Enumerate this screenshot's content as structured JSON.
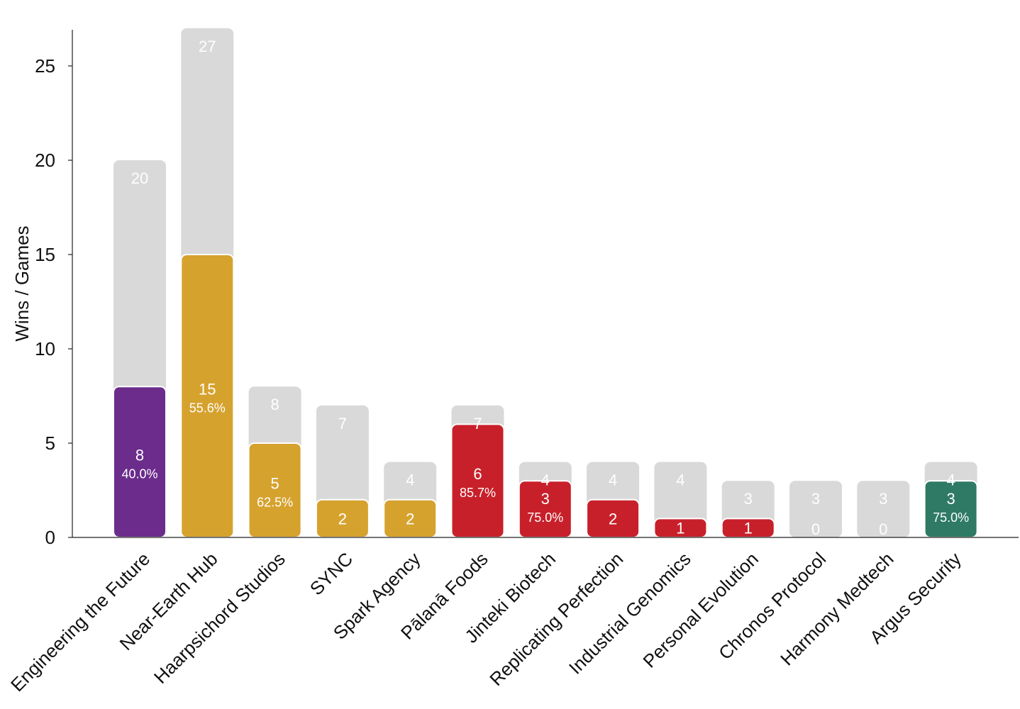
{
  "chart_data": {
    "type": "bar",
    "title": "",
    "xlabel": "",
    "ylabel": "Wins / Games",
    "ylim": [
      0,
      27
    ],
    "yticks": [
      0,
      5,
      10,
      15,
      20,
      25
    ],
    "categories": [
      "Engineering the Future",
      "Near-Earth Hub",
      "Haarpsichord Studios",
      "SYNC",
      "Spark Agency",
      "Pālanā Foods",
      "Jinteki Biotech",
      "Replicating Perfection",
      "Industrial Genomics",
      "Personal Evolution",
      "Chronos Protocol",
      "Harmony Medtech",
      "Argus Security"
    ],
    "series": [
      {
        "name": "Games",
        "values": [
          20,
          27,
          8,
          7,
          4,
          7,
          4,
          4,
          4,
          3,
          3,
          3,
          4
        ],
        "color": "#d9d9d9"
      },
      {
        "name": "Wins",
        "values": [
          8,
          15,
          5,
          2,
          2,
          6,
          3,
          2,
          1,
          1,
          0,
          0,
          3
        ],
        "colors": [
          "#6b2c8c",
          "#d6a22e",
          "#d6a22e",
          "#d6a22e",
          "#d6a22e",
          "#c8202a",
          "#c8202a",
          "#c8202a",
          "#c8202a",
          "#c8202a",
          "#c8202a",
          "#c8202a",
          "#2e7a65"
        ]
      }
    ],
    "win_rate_labels": [
      "40.0%",
      "55.6%",
      "62.5%",
      "",
      "",
      "85.7%",
      "75.0%",
      "",
      "",
      "",
      "",
      "",
      "75.0%"
    ]
  }
}
